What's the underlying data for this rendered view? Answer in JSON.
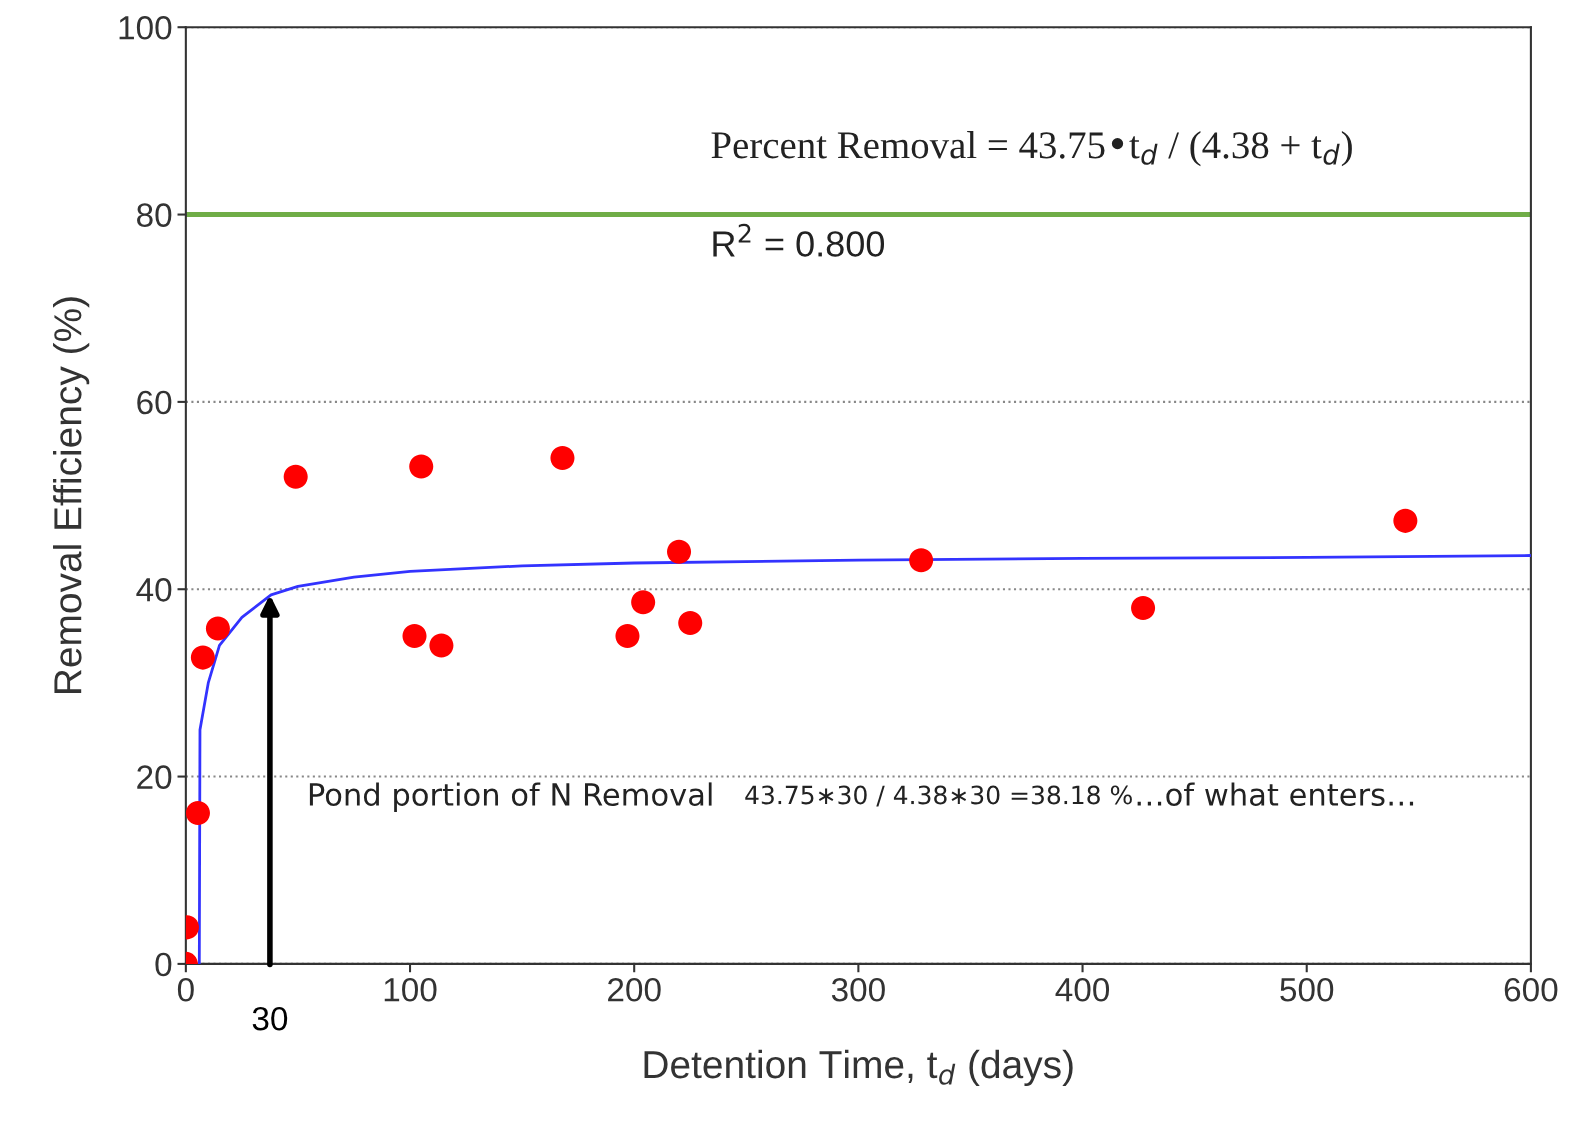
{
  "chart_data": {
    "type": "scatter",
    "xlabel": "Detention Time, t$_{d}$ (days)",
    "ylabel": "Removal Efficiency (%)",
    "xlim": [
      0,
      600
    ],
    "xticks": [
      0,
      100,
      200,
      300,
      400,
      500,
      600
    ],
    "ylim": [
      0,
      100
    ],
    "yticks": [
      0,
      20,
      40,
      60,
      80,
      100
    ],
    "grid": "y",
    "marker": "circle",
    "series": [
      {
        "color": "#ff0000",
        "x": [
          0,
          0.5,
          5.4,
          7.6,
          14.3,
          49,
          102,
          105,
          114,
          168,
          197,
          204,
          220,
          225,
          328,
          427,
          544
        ],
        "values": [
          0,
          3.9,
          16.1,
          32.7,
          35.8,
          52,
          35,
          53.1,
          34,
          54,
          35,
          38.6,
          44,
          36.4,
          43.1,
          38,
          47.3
        ]
      },
      {
        "type": "line",
        "color": "#3333ff",
        "marker": "none",
        "line_style": "solid",
        "x": [
          6,
          6.3,
          10,
          15,
          25,
          38,
          50,
          75,
          100,
          150,
          200,
          300,
          400,
          500,
          600
        ],
        "values": [
          0,
          25,
          30,
          34,
          37,
          39.4,
          40.3,
          41.3,
          41.9,
          42.5,
          42.8,
          43.1,
          43.3,
          43.4,
          43.6
        ]
      }
    ],
    "ref_lines": [
      {
        "axis": "y",
        "value": 80,
        "color": "#70ad47",
        "line_style": "solid"
      }
    ],
    "annotations": [
      "Percent Removal = 43.75•t$_{d}$ / (4.38 + t$_{d}$)",
      "R$^{2}$ = 0.800",
      "Pond portion of N Removal",
      "43.75∗30 / 4.38∗30 =38.18 %",
      "…of what enters…",
      {
        "text": "30",
        "x": 37.5,
        "y": 39.4
      }
    ]
  }
}
